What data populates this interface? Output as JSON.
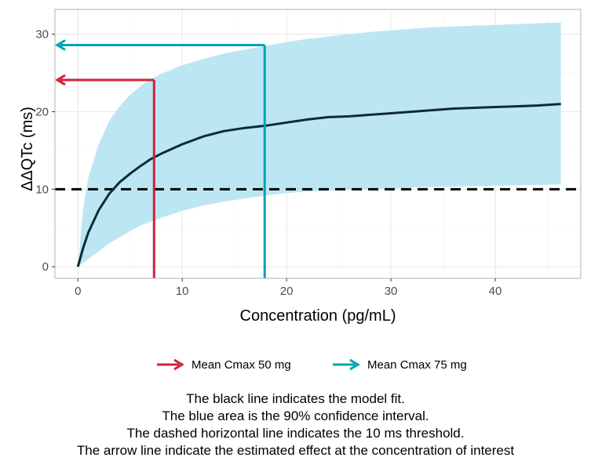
{
  "chart_data": {
    "type": "line",
    "xlabel": "Concentration (pg/mL)",
    "ylabel": "ΔΔQTc (ms)",
    "xlim": [
      -2.2,
      48.2
    ],
    "ylim": [
      -1.5,
      33.2
    ],
    "x_ticks": [
      0,
      10,
      20,
      30,
      40
    ],
    "y_ticks": [
      0,
      10,
      20,
      30
    ],
    "grid": true,
    "model_fit": {
      "name": "Model fit",
      "color": "#0d2b36",
      "x": [
        0,
        0.5,
        1,
        2,
        3,
        4,
        5,
        6,
        7,
        8,
        10,
        12,
        14,
        16,
        18,
        20,
        22,
        24,
        26,
        28,
        30,
        32,
        34,
        36,
        38,
        40,
        42,
        44,
        46.3
      ],
      "y": [
        0,
        2.4,
        4.4,
        7.3,
        9.4,
        10.9,
        12.0,
        13.0,
        13.9,
        14.6,
        15.8,
        16.8,
        17.5,
        17.9,
        18.2,
        18.6,
        19.0,
        19.3,
        19.4,
        19.6,
        19.8,
        20.0,
        20.2,
        20.4,
        20.5,
        20.6,
        20.7,
        20.8,
        21.0
      ]
    },
    "confidence_interval": {
      "name": "90% confidence interval",
      "color": "#bde6f3",
      "x": [
        0,
        0.5,
        1,
        2,
        3,
        4,
        5,
        6,
        7,
        8,
        10,
        12,
        14,
        16,
        18,
        20,
        22,
        24,
        26,
        28,
        30,
        32,
        34,
        36,
        38,
        40,
        42,
        44,
        46.3
      ],
      "lower": [
        0,
        0.5,
        1.0,
        2.0,
        3.0,
        3.8,
        4.6,
        5.3,
        5.8,
        6.3,
        7.2,
        7.9,
        8.4,
        8.8,
        9.2,
        9.5,
        9.7,
        9.8,
        9.9,
        10.0,
        10.1,
        10.2,
        10.3,
        10.35,
        10.4,
        10.45,
        10.5,
        10.55,
        10.6
      ],
      "upper": [
        0,
        7.5,
        11.5,
        15.8,
        18.8,
        20.7,
        22.2,
        23.3,
        24.2,
        24.9,
        26.0,
        26.8,
        27.5,
        28.0,
        28.5,
        29.0,
        29.4,
        29.7,
        30.0,
        30.3,
        30.5,
        30.7,
        30.9,
        31.0,
        31.1,
        31.2,
        31.3,
        31.4,
        31.5
      ]
    },
    "threshold": {
      "name": "10 ms threshold",
      "y": 10,
      "style": "dashed",
      "color": "#000000"
    },
    "arrows": [
      {
        "name": "Mean Cmax 50 mg",
        "x": 7.3,
        "y": 24.1,
        "color": "#d0223a"
      },
      {
        "name": "Mean Cmax 75 mg",
        "x": 17.9,
        "y": 28.6,
        "color": "#00a1bd"
      }
    ],
    "legend_position": "bottom"
  },
  "captions": [
    "The black line indicates the model fit.",
    "The blue area is the 90% confidence interval.",
    "The dashed horizontal line indicates the 10 ms threshold.",
    "The arrow line indicate the estimated effect at the concentration of interest"
  ]
}
